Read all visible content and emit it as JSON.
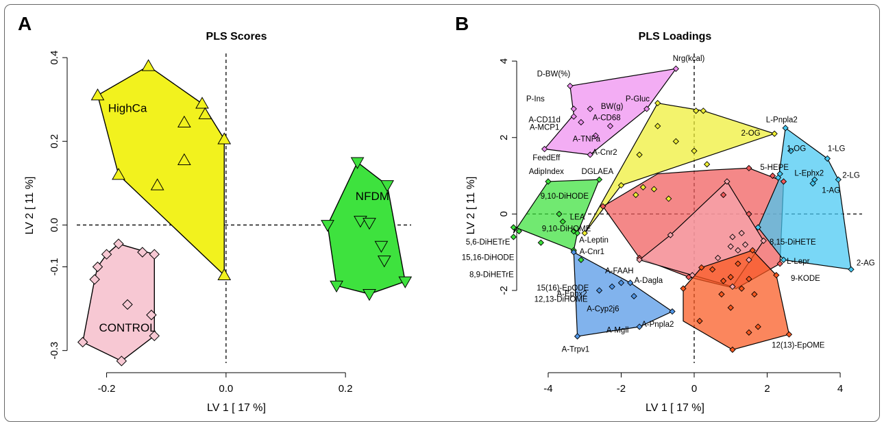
{
  "panels": {
    "left_letter": "A",
    "right_letter": "B"
  },
  "chart_data": [
    {
      "type": "scatter",
      "title": "PLS Scores",
      "xlabel": "LV 1 [ 17 %]",
      "ylabel": "LV 2 [ 11 %]",
      "xlim": [
        -0.25,
        0.31
      ],
      "ylim": [
        -0.33,
        0.41
      ],
      "xticks": [
        "-0.2",
        "0.0",
        "0.2"
      ],
      "yticks": [
        "-0.3",
        "-0.1",
        "0.0",
        "0.2",
        "0.4"
      ],
      "grid": false,
      "reference_lines": "dashed at x=0 and y=0",
      "groups": [
        {
          "name": "HighCa",
          "color": "#f2f21e",
          "marker": "triangle-up",
          "points": [
            [
              -0.215,
              0.31
            ],
            [
              -0.13,
              0.38
            ],
            [
              -0.04,
              0.29
            ],
            [
              -0.035,
              0.265
            ],
            [
              -0.07,
              0.245
            ],
            [
              -0.003,
              0.205
            ],
            [
              -0.07,
              0.155
            ],
            [
              -0.115,
              0.095
            ],
            [
              -0.18,
              0.12
            ],
            [
              -0.003,
              -0.12
            ]
          ]
        },
        {
          "name": "NFDM",
          "color": "#3ee23e",
          "marker": "triangle-down",
          "points": [
            [
              0.22,
              0.15
            ],
            [
              0.27,
              0.095
            ],
            [
              0.225,
              0.01
            ],
            [
              0.24,
              0.005
            ],
            [
              0.17,
              0.0
            ],
            [
              0.26,
              -0.05
            ],
            [
              0.265,
              -0.085
            ],
            [
              0.185,
              -0.145
            ],
            [
              0.24,
              -0.165
            ],
            [
              0.3,
              -0.135
            ]
          ]
        },
        {
          "name": "CONTROL",
          "color": "#f7c8d3",
          "marker": "diamond",
          "points": [
            [
              -0.18,
              -0.045
            ],
            [
              -0.2,
              -0.07
            ],
            [
              -0.14,
              -0.065
            ],
            [
              -0.12,
              -0.07
            ],
            [
              -0.215,
              -0.1
            ],
            [
              -0.22,
              -0.13
            ],
            [
              -0.165,
              -0.19
            ],
            [
              -0.125,
              -0.215
            ],
            [
              -0.12,
              -0.265
            ],
            [
              -0.24,
              -0.28
            ],
            [
              -0.175,
              -0.325
            ]
          ]
        }
      ]
    },
    {
      "type": "scatter",
      "title": "PLS Loadings",
      "xlabel": "LV 1 [ 17 %]",
      "ylabel": "LV 2 [ 11 %]",
      "xlim": [
        -4.6,
        4.6
      ],
      "ylim": [
        -3.9,
        4.2
      ],
      "xticks": [
        "-4",
        "-2",
        "0",
        "2",
        "4"
      ],
      "yticks": [
        "-2",
        "0",
        "2",
        "4"
      ],
      "grid": false,
      "reference_lines": "dashed at x=0 and y=0",
      "clusters": [
        {
          "color": "#ee8ef0",
          "hull": [
            [
              -3.4,
              3.35
            ],
            [
              -0.5,
              3.8
            ],
            [
              -1.3,
              2.75
            ],
            [
              -2.85,
              1.55
            ],
            [
              -4.1,
              1.7
            ],
            [
              -3.3,
              2.6
            ]
          ],
          "points": [
            [
              -3.4,
              3.35
            ],
            [
              -0.5,
              3.8
            ],
            [
              -3.3,
              2.75
            ],
            [
              -2.85,
              2.75
            ],
            [
              -1.3,
              2.75
            ],
            [
              -3.3,
              2.55
            ],
            [
              -3.1,
              2.4
            ],
            [
              -2.3,
              2.3
            ],
            [
              -2.7,
              2.05
            ],
            [
              -2.85,
              1.55
            ],
            [
              -4.1,
              1.7
            ]
          ]
        },
        {
          "color": "#eeee33",
          "hull": [
            [
              -1.0,
              2.9
            ],
            [
              0.25,
              2.7
            ],
            [
              2.2,
              2.1
            ],
            [
              -2.0,
              0.75
            ],
            [
              -3.0,
              -0.5
            ]
          ],
          "points": [
            [
              -1.0,
              2.9
            ],
            [
              0.05,
              2.7
            ],
            [
              0.25,
              2.7
            ],
            [
              2.2,
              2.1
            ],
            [
              -1.0,
              2.3
            ],
            [
              -0.5,
              1.9
            ],
            [
              0.0,
              1.65
            ],
            [
              -1.5,
              1.55
            ],
            [
              0.35,
              1.3
            ],
            [
              -1.4,
              0.7
            ],
            [
              -1.1,
              0.65
            ],
            [
              -0.7,
              0.4
            ],
            [
              -1.6,
              0.5
            ],
            [
              -2.0,
              0.75
            ],
            [
              -3.0,
              -0.5
            ]
          ]
        },
        {
          "color": "#f05a5a",
          "hull": [
            [
              -2.5,
              0.2
            ],
            [
              -1.0,
              1.05
            ],
            [
              0.45,
              1.15
            ],
            [
              1.5,
              1.2
            ],
            [
              2.45,
              0.85
            ],
            [
              2.35,
              -1.3
            ],
            [
              1.15,
              -1.95
            ],
            [
              -0.15,
              -1.65
            ],
            [
              -1.5,
              -1.15
            ]
          ],
          "points": [
            [
              -2.5,
              0.2
            ],
            [
              1.5,
              1.2
            ],
            [
              2.15,
              1.0
            ],
            [
              2.45,
              0.85
            ],
            [
              0.8,
              0.5
            ],
            [
              1.5,
              0.0
            ],
            [
              -1.5,
              -1.15
            ],
            [
              2.35,
              -1.3
            ],
            [
              -0.15,
              -1.65
            ]
          ]
        },
        {
          "color": "#f7a5ad",
          "hull": [
            [
              0.9,
              0.85
            ],
            [
              1.9,
              -0.7
            ],
            [
              1.05,
              -1.9
            ],
            [
              -0.05,
              -1.6
            ],
            [
              -1.5,
              -1.2
            ],
            [
              -0.65,
              -0.55
            ]
          ],
          "points": [
            [
              0.9,
              0.85
            ],
            [
              1.9,
              -0.7
            ],
            [
              -0.65,
              -0.55
            ],
            [
              1.05,
              -0.6
            ],
            [
              1.3,
              -0.5
            ],
            [
              1.0,
              -0.85
            ],
            [
              1.2,
              -0.95
            ],
            [
              1.4,
              -0.8
            ],
            [
              0.65,
              -1.15
            ],
            [
              1.5,
              -1.2
            ],
            [
              -1.5,
              -1.2
            ],
            [
              -0.05,
              -1.6
            ],
            [
              1.05,
              -1.9
            ]
          ]
        },
        {
          "color": "#f9581e",
          "hull": [
            [
              1.6,
              -0.95
            ],
            [
              2.25,
              -1.6
            ],
            [
              2.6,
              -3.15
            ],
            [
              1.05,
              -3.55
            ],
            [
              -0.3,
              -2.8
            ],
            [
              -0.3,
              -1.95
            ],
            [
              0.2,
              -1.4
            ]
          ],
          "points": [
            [
              1.6,
              -0.95
            ],
            [
              1.2,
              -1.3
            ],
            [
              0.5,
              -1.45
            ],
            [
              0.2,
              -1.4
            ],
            [
              1.0,
              -1.65
            ],
            [
              1.5,
              -1.7
            ],
            [
              0.8,
              -1.75
            ],
            [
              1.3,
              -1.95
            ],
            [
              -0.3,
              -1.95
            ],
            [
              0.75,
              -2.1
            ],
            [
              1.65,
              -2.1
            ],
            [
              2.25,
              -1.6
            ],
            [
              1.0,
              -2.45
            ],
            [
              0.15,
              -2.8
            ],
            [
              1.75,
              -2.95
            ],
            [
              2.6,
              -3.15
            ],
            [
              1.05,
              -3.55
            ],
            [
              1.5,
              -3.1
            ]
          ]
        },
        {
          "color": "#45c8f2",
          "hull": [
            [
              2.5,
              2.25
            ],
            [
              3.65,
              1.45
            ],
            [
              3.95,
              0.9
            ],
            [
              4.3,
              -1.45
            ],
            [
              2.45,
              -1.2
            ],
            [
              1.75,
              -0.35
            ],
            [
              2.3,
              0.85
            ]
          ],
          "points": [
            [
              2.5,
              2.25
            ],
            [
              3.65,
              1.45
            ],
            [
              2.65,
              1.65
            ],
            [
              2.3,
              0.95
            ],
            [
              3.95,
              0.9
            ],
            [
              3.3,
              0.9
            ],
            [
              3.25,
              0.8
            ],
            [
              4.3,
              -1.45
            ],
            [
              2.45,
              -1.2
            ],
            [
              1.75,
              -0.35
            ],
            [
              2.35,
              1.05
            ]
          ]
        },
        {
          "color": "#3ae03a",
          "hull": [
            [
              -4.0,
              0.85
            ],
            [
              -2.6,
              0.9
            ],
            [
              -3.2,
              -0.5
            ],
            [
              -3.3,
              -0.95
            ],
            [
              -4.9,
              -0.35
            ],
            [
              -4.95,
              -0.5
            ]
          ],
          "points": [
            [
              -4.0,
              0.85
            ],
            [
              -2.6,
              0.9
            ],
            [
              -3.7,
              0.0
            ],
            [
              -3.6,
              -0.2
            ],
            [
              -3.3,
              -0.45
            ],
            [
              -3.2,
              -0.5
            ],
            [
              -4.95,
              -0.35
            ],
            [
              -4.8,
              -0.45
            ],
            [
              -4.95,
              -0.6
            ],
            [
              -4.2,
              -0.75
            ],
            [
              -3.3,
              -0.95
            ],
            [
              -3.1,
              -1.2
            ]
          ]
        },
        {
          "color": "#5096e6",
          "hull": [
            [
              -3.3,
              -1.0
            ],
            [
              -1.75,
              -1.8
            ],
            [
              -0.6,
              -2.55
            ],
            [
              -1.5,
              -2.95
            ],
            [
              -3.2,
              -3.2
            ]
          ],
          "points": [
            [
              -3.3,
              -1.0
            ],
            [
              -2.0,
              -1.8
            ],
            [
              -1.75,
              -1.8
            ],
            [
              -2.25,
              -1.9
            ],
            [
              -2.6,
              -2.0
            ],
            [
              -1.65,
              -2.15
            ],
            [
              -0.6,
              -2.55
            ],
            [
              -1.5,
              -2.95
            ],
            [
              -3.2,
              -3.2
            ]
          ]
        }
      ],
      "labels": [
        {
          "text": "Nrg(kcal)",
          "x": -0.15,
          "y": 4.0
        },
        {
          "text": "D-BW(%)",
          "x": -3.85,
          "y": 3.6
        },
        {
          "text": "BW(g)",
          "x": -2.25,
          "y": 2.75
        },
        {
          "text": "P-Gluc",
          "x": -1.55,
          "y": 2.95
        },
        {
          "text": "P-Ins",
          "x": -4.35,
          "y": 2.95
        },
        {
          "text": "A-CD11d",
          "x": -4.1,
          "y": 2.4
        },
        {
          "text": "A-MCP1",
          "x": -4.1,
          "y": 2.2
        },
        {
          "text": "A-CD68",
          "x": -2.4,
          "y": 2.45
        },
        {
          "text": "A-TNFa",
          "x": -2.95,
          "y": 1.9
        },
        {
          "text": "FeedEff",
          "x": -4.05,
          "y": 1.4
        },
        {
          "text": "A-Cnr2",
          "x": -2.45,
          "y": 1.55
        },
        {
          "text": "2-OG",
          "x": 1.55,
          "y": 2.05
        },
        {
          "text": "L-Pnpla2",
          "x": 2.4,
          "y": 2.4
        },
        {
          "text": "1-OG",
          "x": 2.8,
          "y": 1.65
        },
        {
          "text": "1-LG",
          "x": 3.9,
          "y": 1.65
        },
        {
          "text": "5-HEPE",
          "x": 2.2,
          "y": 1.15
        },
        {
          "text": "L-Ephx2",
          "x": 3.15,
          "y": 1.0
        },
        {
          "text": "2-LG",
          "x": 4.3,
          "y": 0.95
        },
        {
          "text": "1-AG",
          "x": 3.75,
          "y": 0.55
        },
        {
          "text": "8,15-DiHETE",
          "x": 2.7,
          "y": -0.8
        },
        {
          "text": "L-Lepr",
          "x": 2.85,
          "y": -1.3
        },
        {
          "text": "9-KODE",
          "x": 3.05,
          "y": -1.75
        },
        {
          "text": "2-AG",
          "x": 4.7,
          "y": -1.35
        },
        {
          "text": "12(13)-EpOME",
          "x": 2.85,
          "y": -3.5
        },
        {
          "text": "AdipIndex",
          "x": -4.05,
          "y": 1.05
        },
        {
          "text": "DGLAEA",
          "x": -2.65,
          "y": 1.05
        },
        {
          "text": "9,10-DiHODE",
          "x": -3.55,
          "y": 0.4
        },
        {
          "text": "LEA",
          "x": -3.2,
          "y": -0.15
        },
        {
          "text": "9,10-DiHOME",
          "x": -3.5,
          "y": -0.45
        },
        {
          "text": "5,6-DiHETrE",
          "x": -5.65,
          "y": -0.8
        },
        {
          "text": "15,16-DiHODE",
          "x": -5.65,
          "y": -1.2
        },
        {
          "text": "8,9-DiHETrE",
          "x": -5.55,
          "y": -1.65
        },
        {
          "text": "A-Leptin",
          "x": -2.75,
          "y": -0.75
        },
        {
          "text": "A-Cnr1",
          "x": -2.8,
          "y": -1.05
        },
        {
          "text": "A-FAAH",
          "x": -2.05,
          "y": -1.55
        },
        {
          "text": "A-Dagla",
          "x": -1.25,
          "y": -1.8
        },
        {
          "text": "15(16)-EpODE",
          "x": -3.6,
          "y": -2.0
        },
        {
          "text": "12,13-DiHOME",
          "x": -3.65,
          "y": -2.3
        },
        {
          "text": "A-Ephx2",
          "x": -3.35,
          "y": -2.15
        },
        {
          "text": "A-Cyp2j6",
          "x": -2.5,
          "y": -2.55
        },
        {
          "text": "A-Pnpla2",
          "x": -1.0,
          "y": -2.95
        },
        {
          "text": "A-Mgll",
          "x": -2.1,
          "y": -3.1
        },
        {
          "text": "A-Trpv1",
          "x": -3.25,
          "y": -3.6
        }
      ]
    }
  ]
}
